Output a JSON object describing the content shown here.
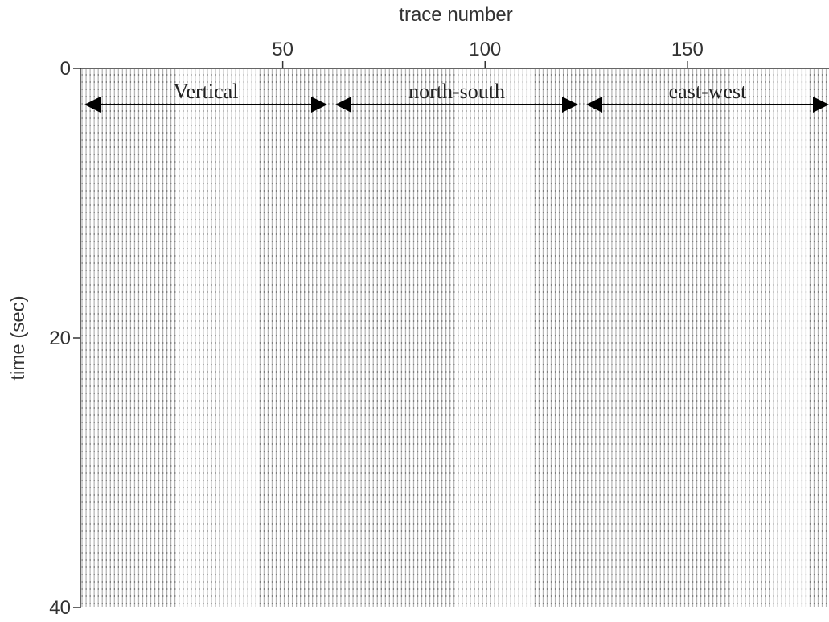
{
  "chart_data": {
    "type": "seismic-section",
    "x_label": "trace number",
    "y_label": "time (sec)",
    "xlim": [
      0,
      185
    ],
    "xticks": [
      50,
      100,
      150
    ],
    "ylim": [
      0,
      40
    ],
    "yticks": [
      0,
      20,
      40
    ],
    "annotations": [
      {
        "text": "Vertical",
        "x": [
          1,
          61
        ]
      },
      {
        "text": "north-south",
        "x": [
          63,
          123
        ]
      },
      {
        "text": "east-west",
        "x": [
          125,
          185
        ]
      }
    ]
  }
}
